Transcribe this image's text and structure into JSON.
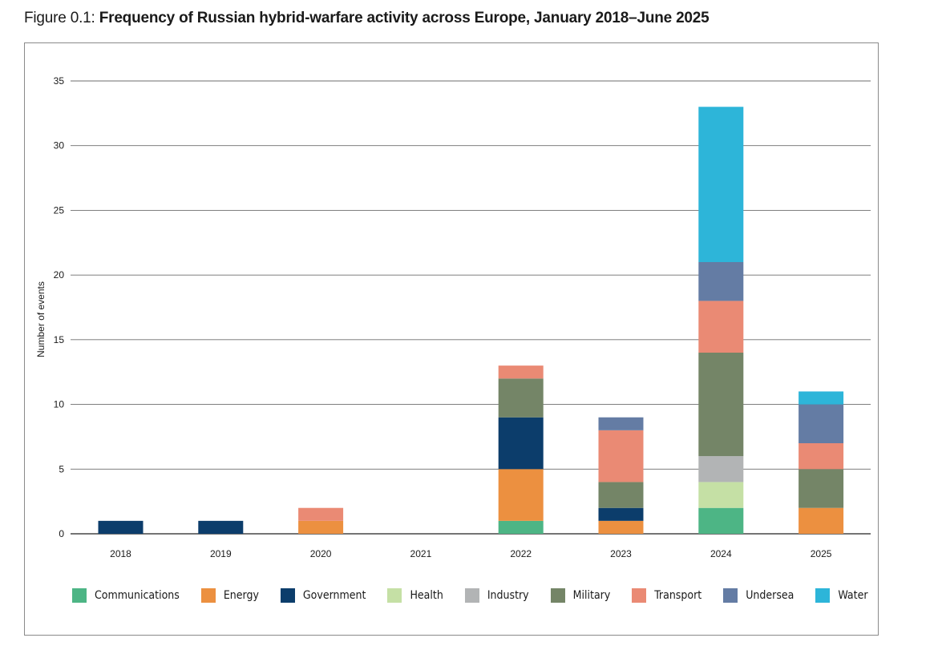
{
  "figure": {
    "label": "Figure 0.1: ",
    "title": "Frequency of Russian hybrid-warfare activity across Europe, January 2018–June 2025"
  },
  "chart_data": {
    "type": "bar",
    "stacked": true,
    "title": "Frequency of Russian hybrid-warfare activity across Europe, January 2018–June 2025",
    "xlabel": "",
    "ylabel": "Number of events",
    "ylim": [
      0,
      35
    ],
    "yticks": [
      0,
      5,
      10,
      15,
      20,
      25,
      30,
      35
    ],
    "grid": "horizontal",
    "legend_position": "bottom",
    "categories": [
      "2018",
      "2019",
      "2020",
      "2021",
      "2022",
      "2023",
      "2024",
      "2025"
    ],
    "series": [
      {
        "name": "Communications",
        "color": "#4db585",
        "values": [
          0,
          0,
          0,
          0,
          1,
          0,
          2,
          0
        ]
      },
      {
        "name": "Energy",
        "color": "#ec9040",
        "values": [
          0,
          0,
          1,
          0,
          4,
          1,
          0,
          2
        ]
      },
      {
        "name": "Government",
        "color": "#0c3d6b",
        "values": [
          1,
          1,
          0,
          0,
          4,
          1,
          0,
          0
        ]
      },
      {
        "name": "Health",
        "color": "#c5e0a5",
        "values": [
          0,
          0,
          0,
          0,
          0,
          0,
          2,
          0
        ]
      },
      {
        "name": "Industry",
        "color": "#b2b4b5",
        "values": [
          0,
          0,
          0,
          0,
          0,
          0,
          2,
          0
        ]
      },
      {
        "name": "Military",
        "color": "#748567",
        "values": [
          0,
          0,
          0,
          0,
          3,
          2,
          8,
          3
        ]
      },
      {
        "name": "Transport",
        "color": "#ea8a74",
        "values": [
          0,
          0,
          1,
          0,
          1,
          4,
          4,
          2
        ]
      },
      {
        "name": "Undersea",
        "color": "#647ca4",
        "values": [
          0,
          0,
          0,
          0,
          0,
          1,
          3,
          3
        ]
      },
      {
        "name": "Water",
        "color": "#2db5d9",
        "values": [
          0,
          0,
          0,
          0,
          0,
          0,
          12,
          1
        ]
      }
    ]
  }
}
